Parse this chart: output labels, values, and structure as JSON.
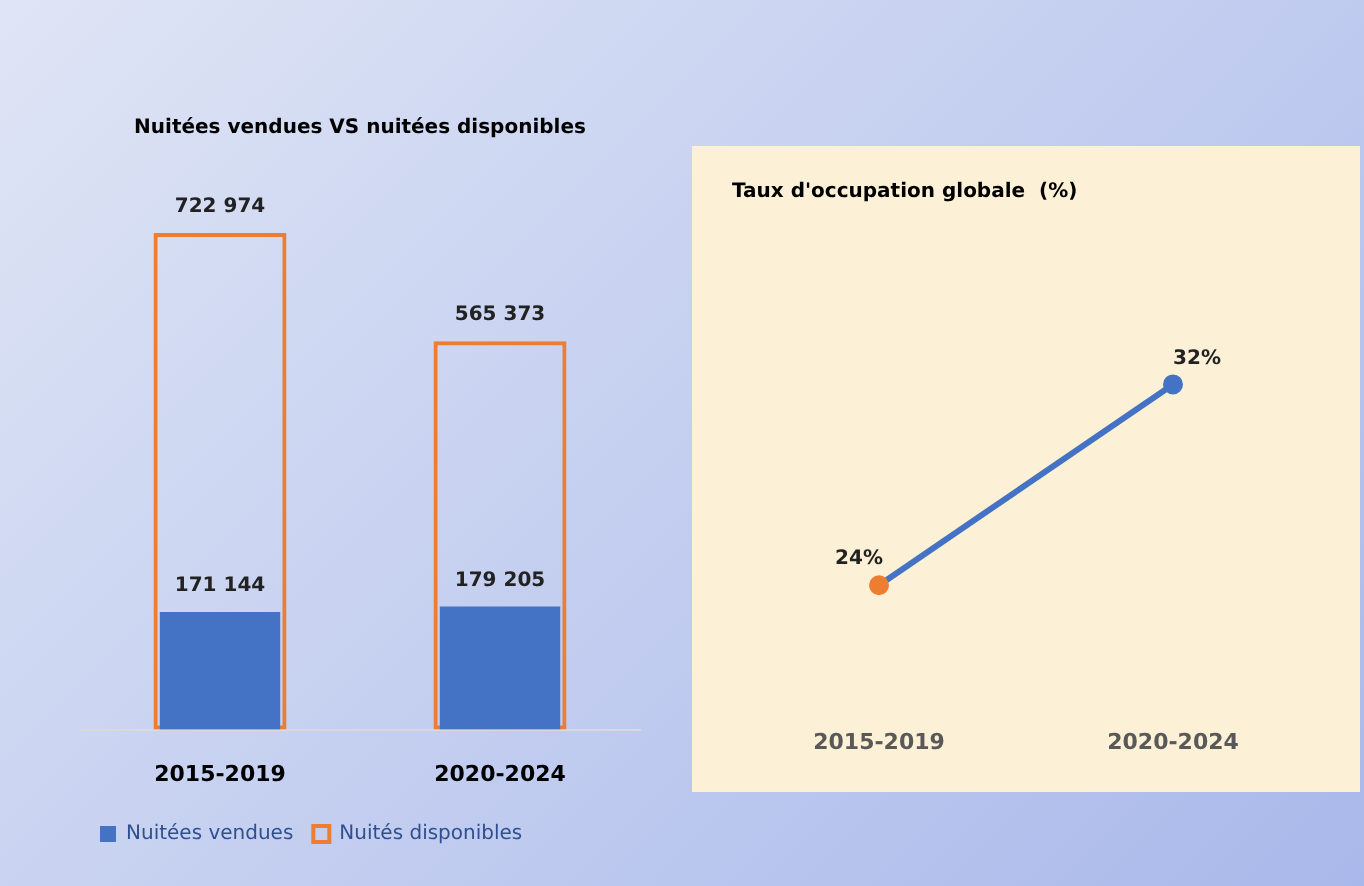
{
  "chart_data": [
    {
      "type": "bar",
      "title": "Nuitées vendues VS nuitées disponibles",
      "categories": [
        "2015-2019",
        "2020-2024"
      ],
      "series": [
        {
          "name": "Nuitées vendues",
          "color": "#4472c4",
          "values": [
            171144,
            179205
          ],
          "value_labels": [
            "171 144",
            "179 205"
          ]
        },
        {
          "name": "Nuités disponibles",
          "color": "#ed7d31",
          "values": [
            722974,
            565373
          ],
          "value_labels": [
            "722 974",
            "565 373"
          ]
        }
      ],
      "legend": "bottom left",
      "tick_labels": "x"
    },
    {
      "type": "line",
      "title": "Taux d'occupation globale  (%)",
      "categories": [
        "2015-2019",
        "2020-2024"
      ],
      "series": [
        {
          "color": "#4472c4",
          "colors": [
            "#ed7d31",
            "#4472c4"
          ],
          "values": [
            24,
            32
          ],
          "value_labels": [
            "24%",
            "32%"
          ]
        }
      ],
      "marker": "circle",
      "tick_labels": "x"
    }
  ]
}
